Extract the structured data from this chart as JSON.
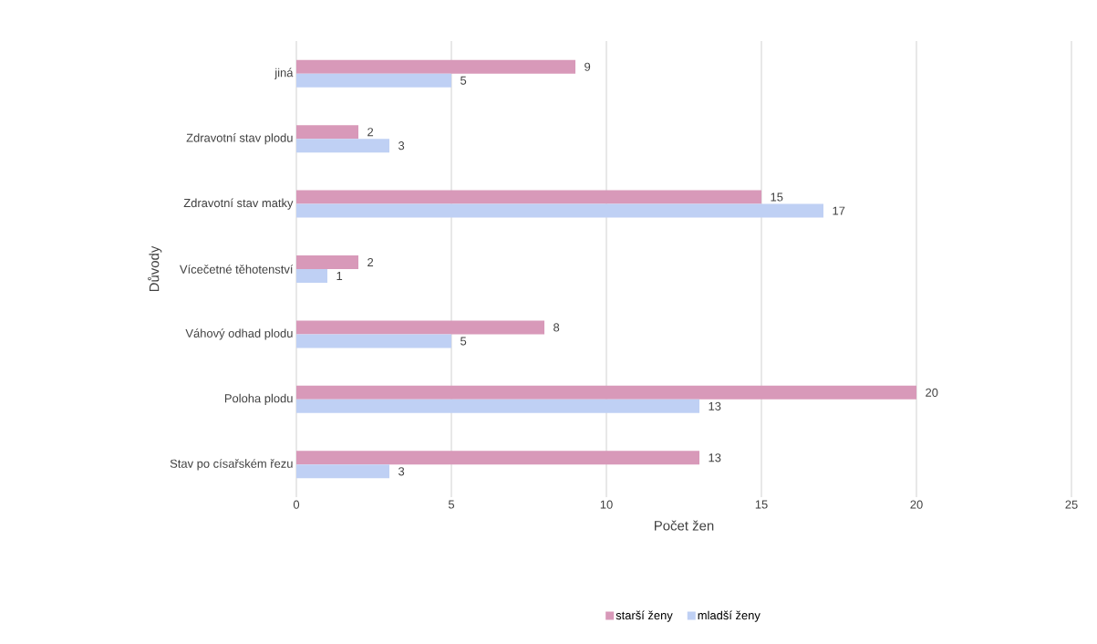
{
  "chart_data": {
    "type": "bar",
    "orientation": "horizontal",
    "xlabel": "Počet žen",
    "ylabel": "Důvody",
    "categories": [
      "jiná",
      "Zdravotní stav plodu",
      "Zdravotní stav matky",
      "Vícečetné těhotenství",
      "Váhový odhad plodu",
      "Poloha plodu",
      "Stav po císařském řezu"
    ],
    "series": [
      {
        "name": "starší ženy",
        "color": "#d899b9",
        "values": [
          9,
          2,
          15,
          2,
          8,
          20,
          13
        ]
      },
      {
        "name": "mladší ženy",
        "color": "#bfd0f4",
        "values": [
          5,
          3,
          17,
          1,
          5,
          13,
          3
        ]
      }
    ],
    "xlim": [
      0,
      25
    ],
    "xticks": [
      0,
      5,
      10,
      15,
      20,
      25
    ],
    "grid": "x",
    "legend": "bottom",
    "data_labels": true
  }
}
